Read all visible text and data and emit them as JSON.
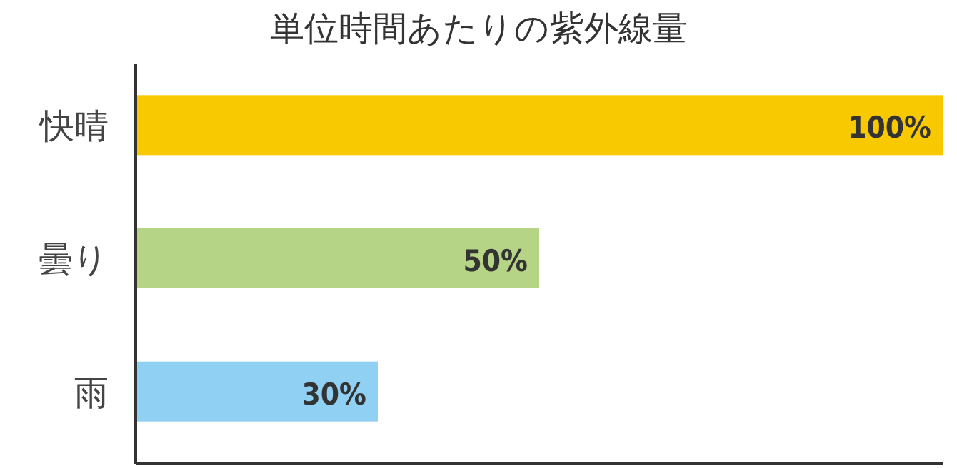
{
  "chart_data": {
    "type": "bar",
    "orientation": "horizontal",
    "title": "単位時間あたりの紫外線量",
    "categories": [
      "快晴",
      "曇り",
      "雨"
    ],
    "values": [
      100,
      50,
      30
    ],
    "colors": [
      "#f9c900",
      "#b5d485",
      "#8fd0f3"
    ],
    "value_labels": [
      "100%",
      "50%",
      "30%"
    ],
    "xlim": [
      0,
      100
    ]
  }
}
